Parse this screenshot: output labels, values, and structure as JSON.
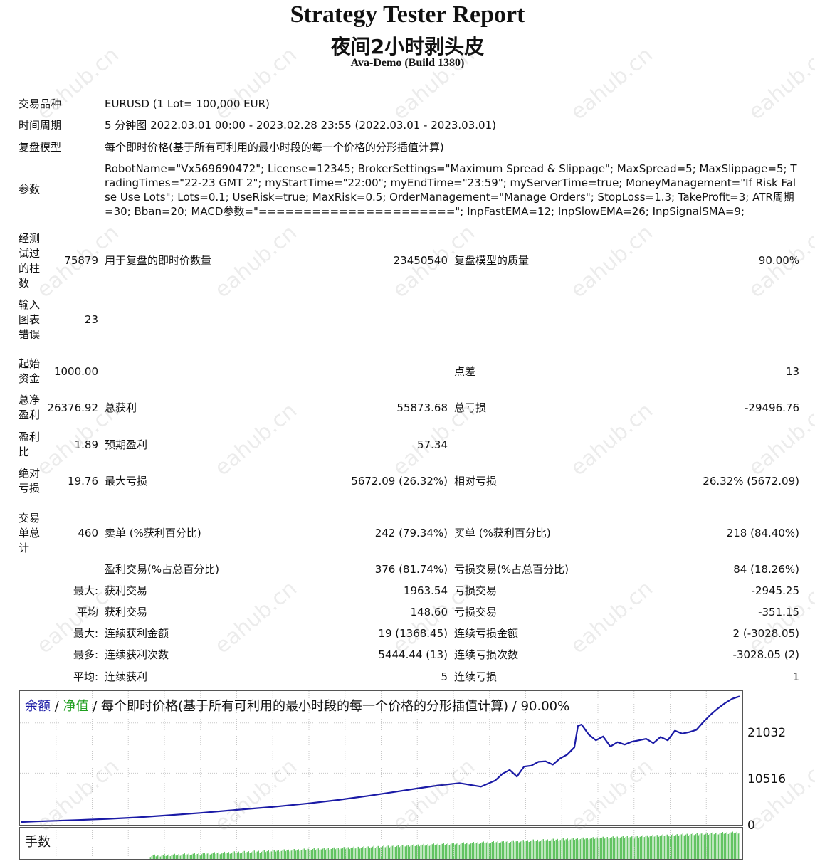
{
  "header": {
    "title": "Strategy Tester Report",
    "subtitle": "夜间2小时剥头皮",
    "build": "Ava-Demo (Build 1380)"
  },
  "info": {
    "symbol_label": "交易品种",
    "symbol": "EURUSD (1 Lot= 100,000 EUR)",
    "period_label": "时间周期",
    "period": "5 分钟图 2022.03.01 00:00 - 2023.02.28 23:55 (2022.03.01 - 2023.03.01)",
    "model_label": "复盘模型",
    "model": "每个即时价格(基于所有可利用的最小时段的每一个价格的分形插值计算)",
    "params_label": "参数",
    "params": "RobotName=\"Vx569690472\"; License=12345; BrokerSettings=\"Maximum Spread & Slippage\"; MaxSpread=5; MaxSlippage=5; TradingTimes=\"22-23 GMT 2\"; myStartTime=\"22:00\"; myEndTime=\"23:59\"; myServerTime=true; MoneyManagement=\"If Risk False Use Lots\"; Lots=0.1; UseRisk=true; MaxRisk=0.5; OrderManagement=\"Manage Orders\"; StopLoss=1.3; TakeProfit=3; ATR周期=30; Bban=20; MACD参数=\"======================\"; InpFastEMA=12; InpSlowEMA=26; InpSignalSMA=9;"
  },
  "stats": {
    "bars_label": "经测\n试过\n的柱\n数",
    "bars": "75879",
    "ticks_label": "用于复盘的即时价数量",
    "ticks": "23450540",
    "quality_label": "复盘模型的质量",
    "quality": "90.00%",
    "errors_label": "输入\n图表\n错误",
    "errors": "23",
    "deposit_label": "起始\n资金",
    "deposit": "1000.00",
    "spread_label": "点差",
    "spread": "13",
    "net_label": "总净\n盈利",
    "net": "26376.92",
    "gross_profit_label": "总获利",
    "gross_profit": "55873.68",
    "gross_loss_label": "总亏损",
    "gross_loss": "-29496.76",
    "pf_label": "盈利\n比",
    "pf": "1.89",
    "expected_label": "预期盈利",
    "expected": "57.34",
    "abs_dd_label": "绝对\n亏损",
    "abs_dd": "19.76",
    "max_dd_label": "最大亏损",
    "max_dd": "5672.09 (26.32%)",
    "rel_dd_label": "相对亏损",
    "rel_dd": "26.32% (5672.09)",
    "trades_label": "交易\n单总\n计",
    "trades": "460",
    "short_label": "卖单 (%获利百分比)",
    "short": "242 (79.34%)",
    "long_label": "买单 (%获利百分比)",
    "long": "218 (84.40%)",
    "win_label": "盈利交易(%占总百分比)",
    "win": "376 (81.74%)",
    "lose_label": "亏损交易(%占总百分比)",
    "lose": "84 (18.26%)",
    "r1_pre": "最大:",
    "r1_a_label": "获利交易",
    "r1_a": "1963.54",
    "r1_b_label": "亏损交易",
    "r1_b": "-2945.25",
    "r2_pre": "平均",
    "r2_a_label": "获利交易",
    "r2_a": "148.60",
    "r2_b_label": "亏损交易",
    "r2_b": "-351.15",
    "r3_pre": "最大:",
    "r3_a_label": "连续获利金额",
    "r3_a": "19 (1368.45)",
    "r3_b_label": "连续亏损金额",
    "r3_b": "2 (-3028.05)",
    "r4_pre": "最多:",
    "r4_a_label": "连续获利次数",
    "r4_a": "5444.44 (13)",
    "r4_b_label": "连续亏损次数",
    "r4_b": "-3028.05 (2)",
    "r5_pre": "平均:",
    "r5_a_label": "连续获利",
    "r5_a": "5",
    "r5_b_label": "连续亏损",
    "r5_b": "1"
  },
  "chart_legend": {
    "balance": "余额",
    "sep1": " / ",
    "equity": "净值",
    "sep2": " / ",
    "rest": "每个即时价格(基于所有可利用的最小时段的每一个价格的分形插值计算) / 90.00%"
  },
  "volume_label": "手数",
  "watermark": "eahub.cn",
  "colors": {
    "balance": "#1a1aa6",
    "equity": "#1f8f1f",
    "volume": "#1faa1f",
    "grid": "#c8c8c8"
  },
  "chart_data": {
    "type": "line",
    "yticks": [
      0,
      10516,
      21032
    ],
    "ylim": [
      0,
      27700
    ],
    "series": [
      {
        "name": "余额",
        "x": [
          0,
          2,
          5,
          8,
          12,
          16,
          20,
          25,
          30,
          35,
          40,
          44,
          48,
          52,
          55,
          58,
          61,
          64,
          66,
          67,
          68,
          69,
          70,
          71,
          72,
          73,
          74,
          75,
          76,
          77,
          77.5,
          78,
          79,
          80,
          81,
          82,
          83,
          84,
          85,
          86,
          87,
          88,
          89,
          90,
          91,
          92,
          93,
          94,
          95,
          96,
          97,
          98,
          99,
          100
        ],
        "y": [
          300,
          420,
          560,
          720,
          950,
          1250,
          1650,
          2200,
          2850,
          3450,
          4200,
          4900,
          5700,
          6600,
          7300,
          7950,
          8450,
          7700,
          9000,
          10400,
          11200,
          9800,
          11900,
          12100,
          12900,
          13000,
          12300,
          13600,
          14400,
          15900,
          20400,
          20700,
          18600,
          17400,
          18200,
          16100,
          17000,
          16500,
          17100,
          17400,
          17700,
          16800,
          18100,
          17400,
          19400,
          18800,
          19100,
          19600,
          21300,
          22800,
          24100,
          25200,
          26100,
          26600
        ]
      }
    ],
    "volume": {
      "start": 0.18,
      "end": 1.0,
      "min_fraction": 0.1,
      "max_fraction": 0.85
    }
  }
}
